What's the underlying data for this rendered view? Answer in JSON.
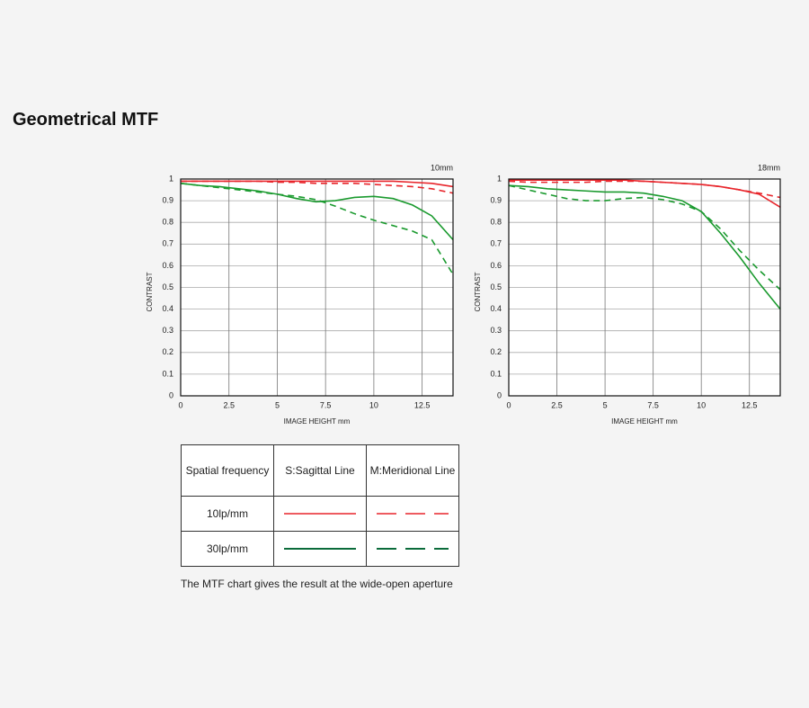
{
  "title": "Geometrical MTF",
  "chart_data": [
    {
      "type": "line",
      "title": "10mm",
      "x_label": "IMAGE HEIGHT   mm",
      "y_label": "CONTRAST",
      "x": [
        0,
        1,
        2,
        3,
        4,
        5,
        6,
        7,
        8,
        9,
        10,
        11,
        12,
        13,
        14.1
      ],
      "xlim": [
        0,
        14.1
      ],
      "xticks": [
        0,
        2.5,
        5,
        7.5,
        10,
        12.5
      ],
      "ylim": [
        0,
        1
      ],
      "yticks": [
        0,
        0.1,
        0.2,
        0.3,
        0.4,
        0.5,
        0.6,
        0.7,
        0.8,
        0.9,
        1
      ],
      "grid": true,
      "series": [
        {
          "color": "#e8252b",
          "dash": false,
          "values": [
            0.99,
            0.99,
            0.99,
            0.99,
            0.99,
            0.99,
            0.99,
            0.99,
            0.99,
            0.99,
            0.99,
            0.99,
            0.985,
            0.98,
            0.965
          ]
        },
        {
          "color": "#e8252b",
          "dash": true,
          "values": [
            0.99,
            0.99,
            0.99,
            0.99,
            0.99,
            0.985,
            0.985,
            0.98,
            0.98,
            0.98,
            0.975,
            0.97,
            0.965,
            0.955,
            0.935
          ]
        },
        {
          "color": "#1a9a2e",
          "dash": false,
          "values": [
            0.98,
            0.97,
            0.965,
            0.955,
            0.945,
            0.93,
            0.91,
            0.895,
            0.9,
            0.915,
            0.92,
            0.91,
            0.88,
            0.83,
            0.72
          ]
        },
        {
          "color": "#1a9a2e",
          "dash": true,
          "values": [
            0.98,
            0.97,
            0.96,
            0.95,
            0.94,
            0.93,
            0.92,
            0.905,
            0.875,
            0.84,
            0.81,
            0.785,
            0.76,
            0.72,
            0.56
          ]
        }
      ]
    },
    {
      "type": "line",
      "title": "18mm",
      "x_label": "IMAGE HEIGHT   mm",
      "y_label": "CONTRAST",
      "x": [
        0,
        1,
        2,
        3,
        4,
        5,
        6,
        7,
        8,
        9,
        10,
        11,
        12,
        13,
        14.1
      ],
      "xlim": [
        0,
        14.1
      ],
      "xticks": [
        0,
        2.5,
        5,
        7.5,
        10,
        12.5
      ],
      "ylim": [
        0,
        1
      ],
      "yticks": [
        0,
        0.1,
        0.2,
        0.3,
        0.4,
        0.5,
        0.6,
        0.7,
        0.8,
        0.9,
        1
      ],
      "grid": true,
      "series": [
        {
          "color": "#e8252b",
          "dash": false,
          "values": [
            0.995,
            0.995,
            0.995,
            0.995,
            0.995,
            0.995,
            0.995,
            0.99,
            0.985,
            0.98,
            0.975,
            0.965,
            0.95,
            0.93,
            0.87
          ]
        },
        {
          "color": "#e8252b",
          "dash": true,
          "values": [
            0.99,
            0.985,
            0.985,
            0.985,
            0.985,
            0.99,
            0.99,
            0.99,
            0.985,
            0.98,
            0.975,
            0.965,
            0.95,
            0.935,
            0.915
          ]
        },
        {
          "color": "#1a9a2e",
          "dash": false,
          "values": [
            0.97,
            0.965,
            0.955,
            0.95,
            0.945,
            0.94,
            0.94,
            0.935,
            0.92,
            0.9,
            0.85,
            0.75,
            0.64,
            0.52,
            0.4
          ]
        },
        {
          "color": "#1a9a2e",
          "dash": true,
          "values": [
            0.97,
            0.95,
            0.93,
            0.91,
            0.9,
            0.9,
            0.91,
            0.915,
            0.905,
            0.885,
            0.85,
            0.77,
            0.67,
            0.58,
            0.49
          ]
        }
      ]
    }
  ],
  "legend_table": {
    "header": [
      "Spatial frequency",
      "S:Sagittal Line",
      "M:Meridional Line"
    ],
    "rows": [
      "10lp/mm",
      "30lp/mm"
    ]
  },
  "caption": "The MTF chart gives the result at the wide-open aperture"
}
